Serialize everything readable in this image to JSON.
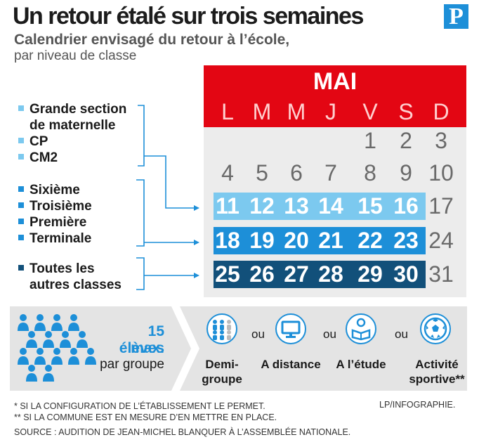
{
  "header": {
    "title": "Un retour étalé sur trois semaines",
    "subtitle_line1": "Calendrier envisagé du retour à l’école,",
    "subtitle_line2": "par niveau de classe",
    "logo_letter": "P"
  },
  "calendar": {
    "month": "MAI",
    "days": [
      "L",
      "M",
      "M",
      "J",
      "V",
      "S",
      "D"
    ],
    "row1": [
      "1",
      "2",
      "3"
    ],
    "row2": [
      "4",
      "5",
      "6",
      "7",
      "8",
      "9",
      "10"
    ],
    "row3": [
      "11",
      "12",
      "13",
      "14",
      "15",
      "16",
      "17"
    ],
    "row4": [
      "18",
      "19",
      "20",
      "21",
      "22",
      "23",
      "24"
    ],
    "row5": [
      "25",
      "26",
      "27",
      "28",
      "29",
      "30",
      "31"
    ]
  },
  "legend": {
    "group1": [
      "Grande section",
      "de maternelle",
      "CP",
      "CM2"
    ],
    "group2": [
      "Sixième",
      "Troisième",
      "Première",
      "Terminale"
    ],
    "group3": [
      "Toutes les",
      "autres classes"
    ]
  },
  "info": {
    "max_line1": "15 élèves",
    "max_line2": "max.",
    "max_line3": "par groupe",
    "or_word": "ou",
    "options": [
      {
        "line1": "Demi-",
        "line2": "groupe",
        "icon": "half-group-icon"
      },
      {
        "line1": "A distance",
        "line2": "",
        "icon": "monitor-icon"
      },
      {
        "line1": "A l’étude",
        "line2": "",
        "icon": "reading-student-icon"
      },
      {
        "line1": "Activité",
        "line2": "sportive**",
        "icon": "soccer-ball-icon"
      }
    ]
  },
  "footnotes": {
    "fn1": "* SI LA CONFIGURATION DE L’ÉTABLISSEMENT LE PERMET.",
    "fn2": "** SI LA COMMUNE EST EN MESURE D’EN METTRE EN PLACE.",
    "source": "SOURCE : AUDITION DE JEAN-MICHEL BLANQUER À L’ASSEMBLÉE NATIONALE.",
    "credit": "LP/INFOGRAPHIE."
  },
  "colors": {
    "red": "#e30613",
    "light_blue": "#7cc9ef",
    "mid_blue": "#1d8fd8",
    "dark_blue": "#12507a",
    "panel_gray": "#e4e4e4"
  }
}
